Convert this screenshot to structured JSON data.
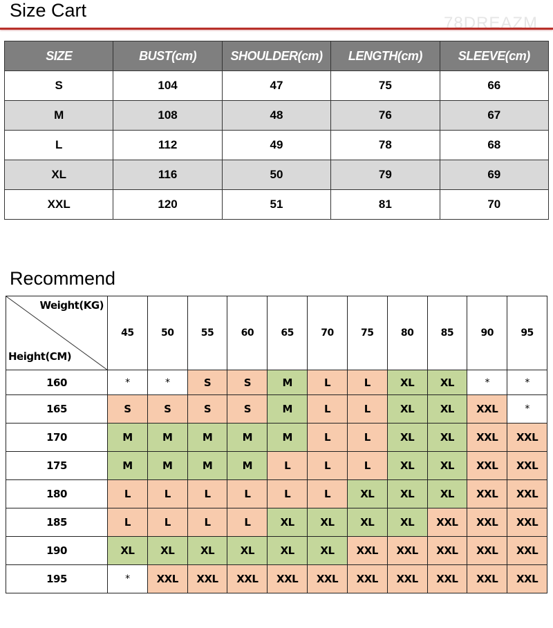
{
  "size_chart": {
    "title": "Size Cart",
    "watermark": "78DREAZM",
    "headers": [
      "SIZE",
      "BUST(cm)",
      "SHOULDER(cm)",
      "LENGTH(cm)",
      "SLEEVE(cm)"
    ],
    "rows": [
      [
        "S",
        "104",
        "47",
        "75",
        "66"
      ],
      [
        "M",
        "108",
        "48",
        "76",
        "67"
      ],
      [
        "L",
        "112",
        "49",
        "78",
        "68"
      ],
      [
        "XL",
        "116",
        "50",
        "79",
        "69"
      ],
      [
        "XXL",
        "120",
        "51",
        "81",
        "70"
      ]
    ],
    "colors": {
      "header_bg": "#7f7f7f",
      "alt_row_bg": "#d9d9d9",
      "rule": "#b8302a"
    }
  },
  "recommend": {
    "title": "Recommend",
    "weight_label": "Weight(KG)",
    "height_label": "Height(CM)",
    "weights": [
      "45",
      "50",
      "55",
      "60",
      "65",
      "70",
      "75",
      "80",
      "85",
      "90",
      "95"
    ],
    "rows": [
      {
        "height": "160",
        "sizes": [
          "*",
          "*",
          "S",
          "S",
          "M",
          "L",
          "L",
          "XL",
          "XL",
          "*",
          "*"
        ]
      },
      {
        "height": "165",
        "sizes": [
          "S",
          "S",
          "S",
          "S",
          "M",
          "L",
          "L",
          "XL",
          "XL",
          "XXL",
          "*"
        ]
      },
      {
        "height": "170",
        "sizes": [
          "M",
          "M",
          "M",
          "M",
          "M",
          "L",
          "L",
          "XL",
          "XL",
          "XXL",
          "XXL"
        ]
      },
      {
        "height": "175",
        "sizes": [
          "M",
          "M",
          "M",
          "M",
          "L",
          "L",
          "L",
          "XL",
          "XL",
          "XXL",
          "XXL"
        ]
      },
      {
        "height": "180",
        "sizes": [
          "L",
          "L",
          "L",
          "L",
          "L",
          "L",
          "XL",
          "XL",
          "XL",
          "XXL",
          "XXL"
        ]
      },
      {
        "height": "185",
        "sizes": [
          "L",
          "L",
          "L",
          "L",
          "XL",
          "XL",
          "XL",
          "XL",
          "XXL",
          "XXL",
          "XXL"
        ]
      },
      {
        "height": "190",
        "sizes": [
          "XL",
          "XL",
          "XL",
          "XL",
          "XL",
          "XL",
          "XXL",
          "XXL",
          "XXL",
          "XXL",
          "XXL"
        ]
      },
      {
        "height": "195",
        "sizes": [
          "*",
          "XXL",
          "XXL",
          "XXL",
          "XXL",
          "XXL",
          "XXL",
          "XXL",
          "XXL",
          "XXL",
          "XXL"
        ]
      }
    ],
    "cell_colors": {
      "S": "#f8cbad",
      "L": "#f8cbad",
      "XXL": "#f8cbad",
      "M": "#c4d79b",
      "XL": "#c4d79b",
      "*": "#ffffff"
    }
  }
}
